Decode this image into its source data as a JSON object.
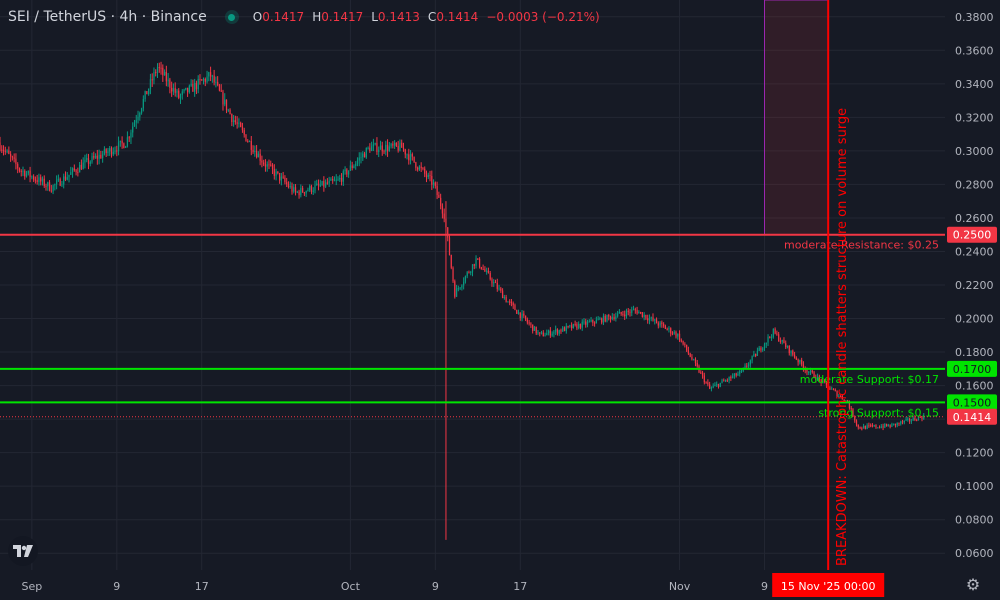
{
  "legend": {
    "symbol": "SEI / TetherUS · 4h · Binance",
    "o_label": "O",
    "o_value": "0.1417",
    "h_label": "H",
    "h_value": "0.1417",
    "l_label": "L",
    "l_value": "0.1413",
    "c_label": "C",
    "c_value": "0.1414",
    "change": "−0.0003 (−0.21%)"
  },
  "colors": {
    "background": "#161a25",
    "grid": "#232733",
    "up": "#089981",
    "down": "#f23645",
    "resistance": "#f23645",
    "support": "#00e400",
    "breakdown": "#ff0000",
    "zone": "#9c27b0",
    "axis_text": "#b2b5be"
  },
  "icons": {
    "logo": "tradingview-logo-icon",
    "settings": "gear-icon",
    "live": "live-status-dot-icon"
  },
  "chart_data": {
    "type": "candlestick",
    "timeframe": "4h",
    "y_axis": {
      "range": [
        0.05,
        0.39
      ],
      "ticks": [
        "0.3800",
        "0.3600",
        "0.3400",
        "0.3200",
        "0.3000",
        "0.2800",
        "0.2600",
        "0.2400",
        "0.2200",
        "0.2000",
        "0.1800",
        "0.1600",
        "0.1400",
        "0.1200",
        "0.1000",
        "0.0800",
        "0.0600"
      ]
    },
    "x_axis": {
      "range": [
        "2025-08-29",
        "2025-11-26"
      ],
      "ticks": [
        {
          "label": "Sep",
          "date": "2025-09-01"
        },
        {
          "label": "9",
          "date": "2025-09-09"
        },
        {
          "label": "17",
          "date": "2025-09-17"
        },
        {
          "label": "Oct",
          "date": "2025-10-01"
        },
        {
          "label": "9",
          "date": "2025-10-09"
        },
        {
          "label": "17",
          "date": "2025-10-17"
        },
        {
          "label": "Nov",
          "date": "2025-11-01"
        },
        {
          "label": "9",
          "date": "2025-11-09"
        }
      ]
    },
    "price_path": [
      {
        "date": "2025-08-29",
        "price": 0.305
      },
      {
        "date": "2025-08-31",
        "price": 0.289
      },
      {
        "date": "2025-09-03",
        "price": 0.278
      },
      {
        "date": "2025-09-06",
        "price": 0.292
      },
      {
        "date": "2025-09-10",
        "price": 0.305
      },
      {
        "date": "2025-09-13",
        "price": 0.35
      },
      {
        "date": "2025-09-15",
        "price": 0.332
      },
      {
        "date": "2025-09-18",
        "price": 0.345
      },
      {
        "date": "2025-09-20",
        "price": 0.32
      },
      {
        "date": "2025-09-23",
        "price": 0.293
      },
      {
        "date": "2025-09-26",
        "price": 0.275
      },
      {
        "date": "2025-09-30",
        "price": 0.282
      },
      {
        "date": "2025-10-03",
        "price": 0.302
      },
      {
        "date": "2025-10-06",
        "price": 0.302
      },
      {
        "date": "2025-10-09",
        "price": 0.28
      },
      {
        "date": "2025-10-10",
        "price": 0.262
      },
      {
        "date": "2025-10-11",
        "price": 0.215
      },
      {
        "date": "2025-10-13",
        "price": 0.235
      },
      {
        "date": "2025-10-16",
        "price": 0.21
      },
      {
        "date": "2025-10-19",
        "price": 0.19
      },
      {
        "date": "2025-10-24",
        "price": 0.198
      },
      {
        "date": "2025-10-28",
        "price": 0.205
      },
      {
        "date": "2025-11-01",
        "price": 0.19
      },
      {
        "date": "2025-11-04",
        "price": 0.158
      },
      {
        "date": "2025-11-07",
        "price": 0.168
      },
      {
        "date": "2025-11-10",
        "price": 0.192
      },
      {
        "date": "2025-11-13",
        "price": 0.17
      },
      {
        "date": "2025-11-15",
        "price": 0.16
      },
      {
        "date": "2025-11-17",
        "price": 0.15
      },
      {
        "date": "2025-11-18",
        "price": 0.135
      },
      {
        "date": "2025-11-21",
        "price": 0.136
      },
      {
        "date": "2025-11-24",
        "price": 0.1414
      }
    ],
    "wick_events": [
      {
        "date": "2025-10-10",
        "low": 0.068,
        "high": 0.27
      }
    ],
    "levels": [
      {
        "name": "moderate Resistance",
        "price": 0.25,
        "price_label": "0.2500",
        "label": "moderate Resistance: $0.25",
        "color": "#f23645"
      },
      {
        "name": "moderate Support",
        "price": 0.17,
        "price_label": "0.1700",
        "label": "moderate Support: $0.17",
        "color": "#00e400"
      },
      {
        "name": "strong Support",
        "price": 0.15,
        "price_label": "0.1500",
        "label": "strong Support: $0.15",
        "color": "#00e400"
      }
    ],
    "last_price": {
      "price": 0.1414,
      "label": "0.1414"
    },
    "breakdown": {
      "date": "2025-11-15",
      "date_label": "15 Nov '25   00:00",
      "text": "BREAKDOWN: Catastrophic candle shatters structure on volume surge"
    },
    "zone": {
      "start": "2025-11-09",
      "end": "2025-11-15",
      "from_price": 0.25,
      "to_price": 0.39
    }
  }
}
